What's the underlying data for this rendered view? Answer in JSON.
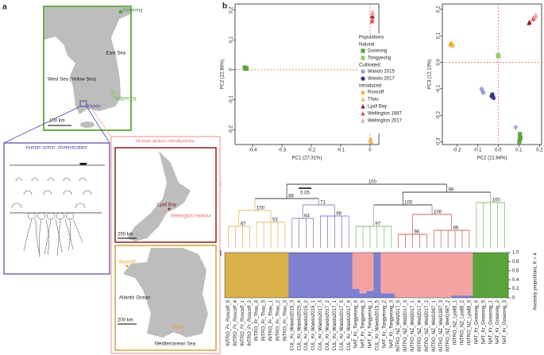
{
  "panel_labels": [
    "a",
    "b",
    "c",
    "d"
  ],
  "map_korea": {
    "goseong": "Goseong",
    "east_sea": "East Sea",
    "west_sea": "West Sea (Yellow Sea)",
    "tongyeong": "Tongyeong",
    "wando": "Wando",
    "scale": "100 km"
  },
  "domestication": {
    "title": "Human action: domestication"
  },
  "introductions": {
    "title": "Human action: introductions",
    "lyall_bay": "Lyall Bay",
    "wellington": "Wellington Harbour",
    "nz_scale": "200 km",
    "atlantic": "Atlantic Ocean",
    "roscoff": "Roscoff",
    "fr_scale": "200 km",
    "thau": "Thau",
    "med": "Mediterranean Sea"
  },
  "tree": {
    "scale_label": "0.05",
    "supports": [
      "100",
      "99",
      "100",
      "100",
      "100",
      "97",
      "100",
      "71",
      "89",
      "87",
      "53",
      "64",
      "68",
      "98",
      "66"
    ]
  },
  "chart_data": [
    {
      "type": "scatter",
      "xlabel": "PC1 (27.31%)",
      "ylabel": "PC2 (22.84%)",
      "xlim": [
        -0.46,
        0.03
      ],
      "ylim": [
        -0.25,
        0.22
      ],
      "xticks": [
        -0.4,
        -0.3,
        -0.2,
        -0.1,
        0
      ],
      "yticks": [
        -0.2,
        -0.1,
        0,
        0.1,
        0.2
      ],
      "legend_title": "Populations",
      "legend_groups": [
        "Natural",
        "Cultivated",
        "Introduced"
      ],
      "series": [
        {
          "name": "Goseong",
          "color": "#5ba23c",
          "marker": "square",
          "x": [
            -0.425,
            -0.422,
            -0.427,
            -0.424,
            -0.421
          ],
          "y": [
            0.006,
            0.003,
            0.008,
            0.004,
            0.005
          ]
        },
        {
          "name": "Tongyeong",
          "color": "#8fd16a",
          "marker": "square",
          "x": [
            0.0,
            0.002,
            -0.002,
            0.001,
            -0.001
          ],
          "y": [
            0.113,
            0.108,
            0.105,
            0.115,
            0.11
          ]
        },
        {
          "name": "Wando 2015",
          "color": "#9a9ae0",
          "marker": "circle",
          "x": [
            -0.004,
            -0.002,
            -0.005,
            -0.003,
            -0.001
          ],
          "y": [
            -0.005,
            -0.012,
            -0.018,
            -0.022,
            -0.008
          ]
        },
        {
          "name": "Wando 2017",
          "color": "#34348a",
          "marker": "circle",
          "x": [
            -0.003,
            -0.001,
            -0.004,
            -0.002,
            0.0
          ],
          "y": [
            -0.025,
            -0.03,
            -0.02,
            -0.028,
            -0.015
          ]
        },
        {
          "name": "Roscoff",
          "color": "#f29a1a",
          "marker": "triangle",
          "x": [
            0.002,
            0.004,
            0.001,
            0.003
          ],
          "y": [
            -0.235,
            -0.24,
            -0.232,
            -0.238
          ]
        },
        {
          "name": "Thau",
          "color": "#f5b86a",
          "marker": "triangle",
          "x": [
            0.003,
            0.005,
            0.002
          ],
          "y": [
            -0.23,
            -0.242,
            -0.236
          ]
        },
        {
          "name": "Lyall Bay",
          "color": "#8b2020",
          "marker": "triangle",
          "x": [
            0.008,
            0.009,
            0.007
          ],
          "y": [
            0.18,
            0.178,
            0.182
          ]
        },
        {
          "name": "Wellington 1987",
          "color": "#e05050",
          "marker": "triangle",
          "x": [
            0.007,
            0.008,
            0.006
          ],
          "y": [
            0.165,
            0.168,
            0.162
          ]
        },
        {
          "name": "Wellington 2017",
          "color": "#f5a0a0",
          "marker": "triangle",
          "x": [
            0.008,
            0.009,
            0.007,
            0.008,
            0.009
          ],
          "y": [
            0.19,
            0.192,
            0.188,
            0.194,
            0.186
          ]
        }
      ]
    },
    {
      "type": "scatter",
      "xlabel": "PC2 (22.84%)",
      "ylabel": "PC3 (12.13%)",
      "xlim": [
        -0.27,
        0.21
      ],
      "ylim": [
        -0.31,
        0.22
      ],
      "xticks": [
        -0.2,
        -0.1,
        {
          "value": 0,
          "label": "0.0"
        },
        0.1,
        0.2
      ],
      "yticks": [
        -0.3,
        -0.2,
        -0.1,
        {
          "value": 0,
          "label": "0.0"
        },
        0.1,
        0.2
      ],
      "series": [
        {
          "color": "#5ba23c",
          "marker": "square",
          "x": [
            0.105,
            0.108,
            0.102,
            0.106,
            0.104
          ],
          "y": [
            -0.27,
            -0.285,
            -0.3,
            -0.278,
            -0.292
          ]
        },
        {
          "color": "#8fd16a",
          "marker": "square",
          "x": [
            0.0,
            0.002,
            -0.001,
            0.001,
            0.0
          ],
          "y": [
            0.025,
            0.023,
            0.027,
            0.024,
            0.026
          ]
        },
        {
          "color": "#9a9ae0",
          "marker": "circle",
          "x": [
            -0.08,
            -0.075,
            0.085,
            -0.078,
            -0.072
          ],
          "y": [
            -0.1,
            -0.11,
            -0.245,
            -0.105,
            -0.115
          ]
        },
        {
          "color": "#34348a",
          "marker": "circle",
          "x": [
            -0.03,
            -0.025,
            -0.028,
            -0.022,
            -0.032
          ],
          "y": [
            -0.125,
            -0.13,
            -0.12,
            -0.135,
            -0.128
          ]
        },
        {
          "color": "#f29a1a",
          "marker": "triangle",
          "x": [
            -0.23,
            -0.228,
            -0.232,
            -0.226
          ],
          "y": [
            0.07,
            0.072,
            0.068,
            0.071
          ]
        },
        {
          "color": "#f5b86a",
          "marker": "triangle",
          "x": [
            -0.22,
            -0.218,
            -0.222
          ],
          "y": [
            0.065,
            0.067,
            0.063
          ]
        },
        {
          "color": "#8b2020",
          "marker": "triangle",
          "x": [
            0.15,
            0.152,
            0.148
          ],
          "y": [
            0.15,
            0.152,
            0.148
          ]
        },
        {
          "color": "#e05050",
          "marker": "triangle",
          "x": [
            0.17,
            0.172,
            0.168
          ],
          "y": [
            0.165,
            0.167,
            0.163
          ]
        },
        {
          "color": "#f5a0a0",
          "marker": "triangle",
          "x": [
            0.18,
            0.182,
            0.178,
            0.181,
            0.179
          ],
          "y": [
            0.175,
            0.178,
            0.172,
            0.176,
            0.174
          ]
        }
      ]
    },
    {
      "type": "stacked_bar",
      "ylabel": "Ancestry proportions, K = 4",
      "ylim": [
        0,
        1
      ],
      "yticks": [
        0,
        0.2,
        0.4,
        0.6,
        0.8,
        {
          "value": 1,
          "label": "1.0"
        }
      ],
      "categories": [
        "INTRO_Fr_Roscoff_5",
        "INTRO_Fr_Roscoff_4",
        "INTRO_Fr_Roscoff_1",
        "INTRO_Fr_Roscoff_2",
        "INTRO_Fr_Thau_4",
        "INTRO_Fr_Thau_5",
        "INTRO_Fr_Thau_1",
        "INTRO_Fr_Thau_2",
        "INTRO_Fr_Thau_3",
        "CUL_Kr_Wando2015_3",
        "CUL_Kr_Wando2015_4",
        "CUL_Kr_Wando2015_2",
        "CUL_Kr_Wando2015_1",
        "CUL_Kr_Wando2017_3",
        "CUL_Kr_Wando2017_2",
        "CUL_Kr_Wando2017_1",
        "CUL_Kr_Wando2017_5",
        "CUL_Kr_Wando2017_4",
        "NAT_Kr_Tongyeong_4",
        "NAT_Kr_Tongyeong_5",
        "NAT_Kr_Tongyeong_1",
        "CUL_Kr_Wando2015_5",
        "NAT_Kr_Tongyeong_2",
        "NAT_Kr_Tongyeong_3",
        "INTRO_NZ_Well2017_5",
        "INTRO_NZ_Well2017_3",
        "INTRO_NZ_Well2017_1",
        "INTRO_NZ_Well2017_4",
        "INTRO_NZ_Well2017_2",
        "INTRO_NZ_Well1987_1",
        "INTRO_NZ_Well1987_3",
        "INTRO_NZ_Well1987_2",
        "INTRO_NZ_LyallB_1",
        "INTRO_NZ_LyallB_2",
        "INTRO_NZ_LyallB_3",
        "NAT_Kr_Goseong_4",
        "NAT_Kr_Goseong_5",
        "NAT_Kr_Goseong_1",
        "NAT_Kr_Goseong_2",
        "NAT_Kr_Goseong_3"
      ],
      "series": [
        {
          "color": "#d9b04a",
          "values": [
            1,
            1,
            1,
            1,
            1,
            1,
            1,
            1,
            1,
            0,
            0,
            0,
            0,
            0,
            0,
            0,
            0,
            0,
            0,
            0,
            0,
            0,
            0,
            0,
            0,
            0,
            0,
            0,
            0,
            0,
            0,
            0,
            0,
            0,
            0,
            0,
            0,
            0,
            0,
            0
          ]
        },
        {
          "color": "#7d7fd0",
          "values": [
            0,
            0,
            0,
            0,
            0,
            0,
            0,
            0,
            0,
            1,
            1,
            1,
            1,
            1,
            1,
            1,
            1,
            1,
            0.2,
            0.1,
            0.15,
            1,
            0.1,
            0.1,
            0,
            0,
            0,
            0,
            0,
            0,
            0,
            0,
            0.05,
            0.05,
            0.05,
            0,
            0,
            0,
            0,
            0
          ]
        },
        {
          "color": "#f4a3a3",
          "values": [
            0,
            0,
            0,
            0,
            0,
            0,
            0,
            0,
            0,
            0,
            0,
            0,
            0,
            0,
            0,
            0,
            0,
            0,
            0.8,
            0.9,
            0.85,
            0,
            0.9,
            0.9,
            1,
            1,
            1,
            1,
            1,
            1,
            1,
            1,
            0.95,
            0.95,
            0.95,
            0,
            0,
            0,
            0,
            0
          ]
        },
        {
          "color": "#5aa33c",
          "values": [
            0,
            0,
            0,
            0,
            0,
            0,
            0,
            0,
            0,
            0,
            0,
            0,
            0,
            0,
            0,
            0,
            0,
            0,
            0,
            0,
            0,
            0,
            0,
            0,
            0,
            0,
            0,
            0,
            0,
            0,
            0,
            0,
            0,
            0,
            0,
            1,
            1,
            1,
            1,
            1
          ]
        }
      ]
    }
  ]
}
